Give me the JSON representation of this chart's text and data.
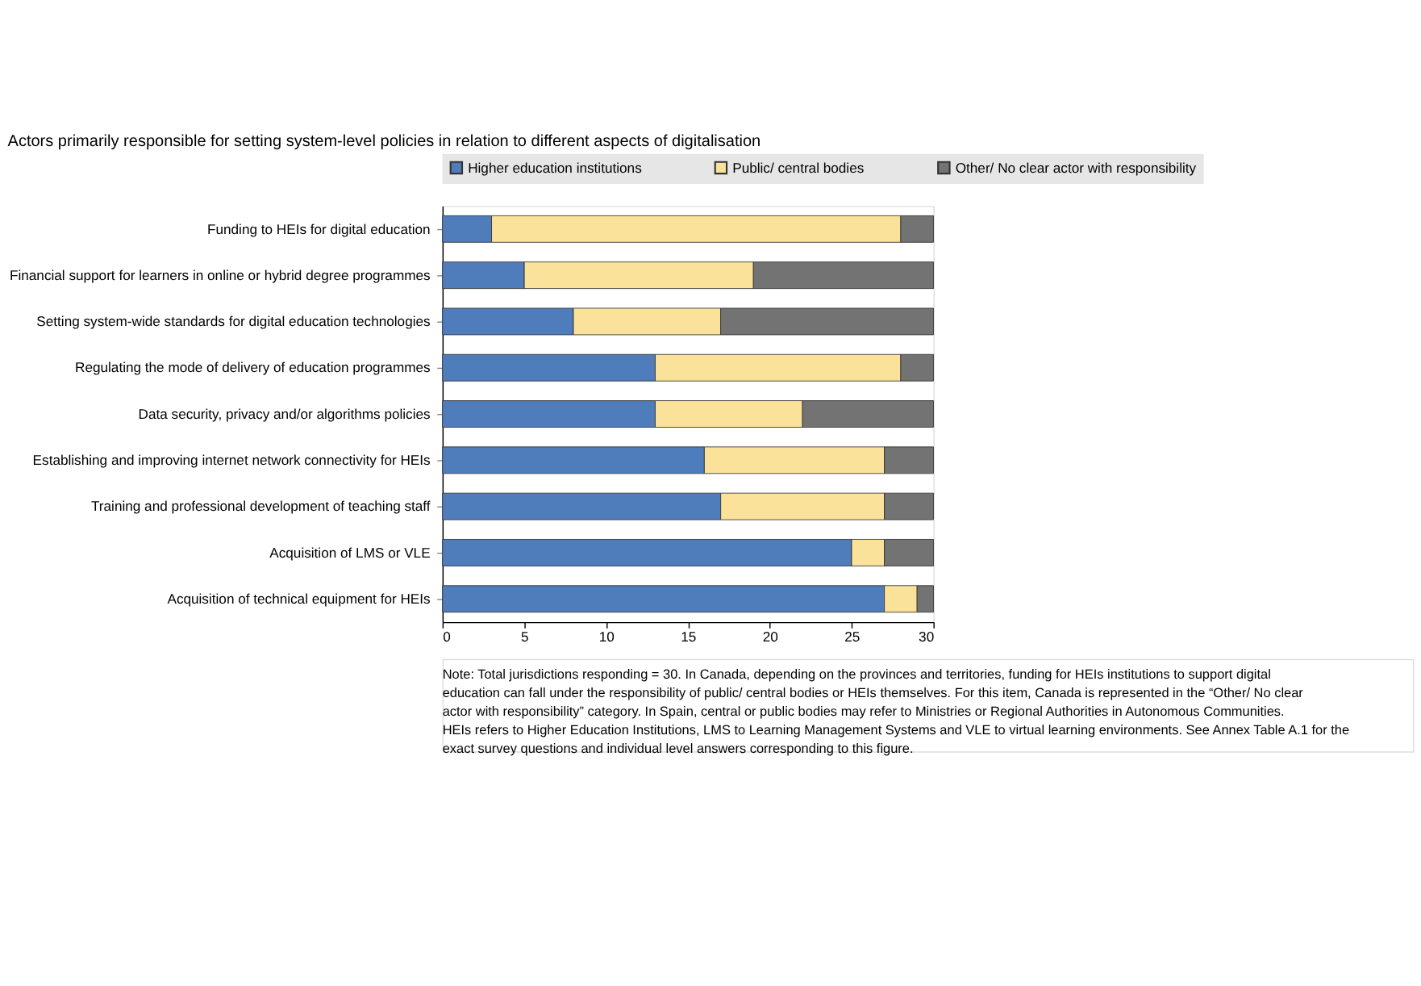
{
  "chart_data": {
    "type": "bar",
    "orientation": "horizontal",
    "stacked": true,
    "title": "Actors primarily responsible for setting system-level policies in relation to different aspects of digitalisation",
    "categories": [
      "Funding to HEIs for digital education",
      "Financial support for learners in online or hybrid degree programmes",
      "Setting system-wide standards for digital education technologies",
      "Regulating the mode of delivery of education programmes",
      "Data security, privacy and/or algorithms policies",
      "Establishing and improving internet network connectivity for HEIs",
      "Training and professional development of teaching staff",
      "Acquisition of LMS or VLE",
      "Acquisition of technical equipment for HEIs"
    ],
    "series": [
      {
        "name": "Higher education institutions",
        "color": "#4f7cba",
        "values": [
          3,
          5,
          8,
          13,
          13,
          16,
          17,
          25,
          27
        ]
      },
      {
        "name": "Public/ central bodies",
        "color": "#fbe29b",
        "values": [
          25,
          14,
          9,
          15,
          9,
          11,
          10,
          2,
          2
        ]
      },
      {
        "name": "Other/ No clear actor with responsibility",
        "color": "#737373",
        "values": [
          2,
          11,
          13,
          2,
          8,
          3,
          3,
          3,
          1
        ]
      }
    ],
    "xlim": [
      0,
      30
    ],
    "xticks": [
      0,
      5,
      10,
      15,
      20,
      25,
      30
    ],
    "grid": false,
    "legend": "top",
    "annotations": [
      "Note: Total jurisdictions responding = 30. In Canada, depending on the provinces and territories, funding for HEIs institutions to support digital education can fall under the responsibility of public/ central bodies or HEIs themselves. For this item, Canada is represented in the “Other/ No clear actor with responsibility” category. In Spain, central or public bodies may refer to Ministries or Regional Authorities in Autonomous Communities. HEIs refers to Higher Education Institutions, LMS to Learning Management Systems and VLE to virtual learning environments. See Annex Table A.1 for the exact survey questions and individual level answers corresponding to this figure."
    ]
  }
}
